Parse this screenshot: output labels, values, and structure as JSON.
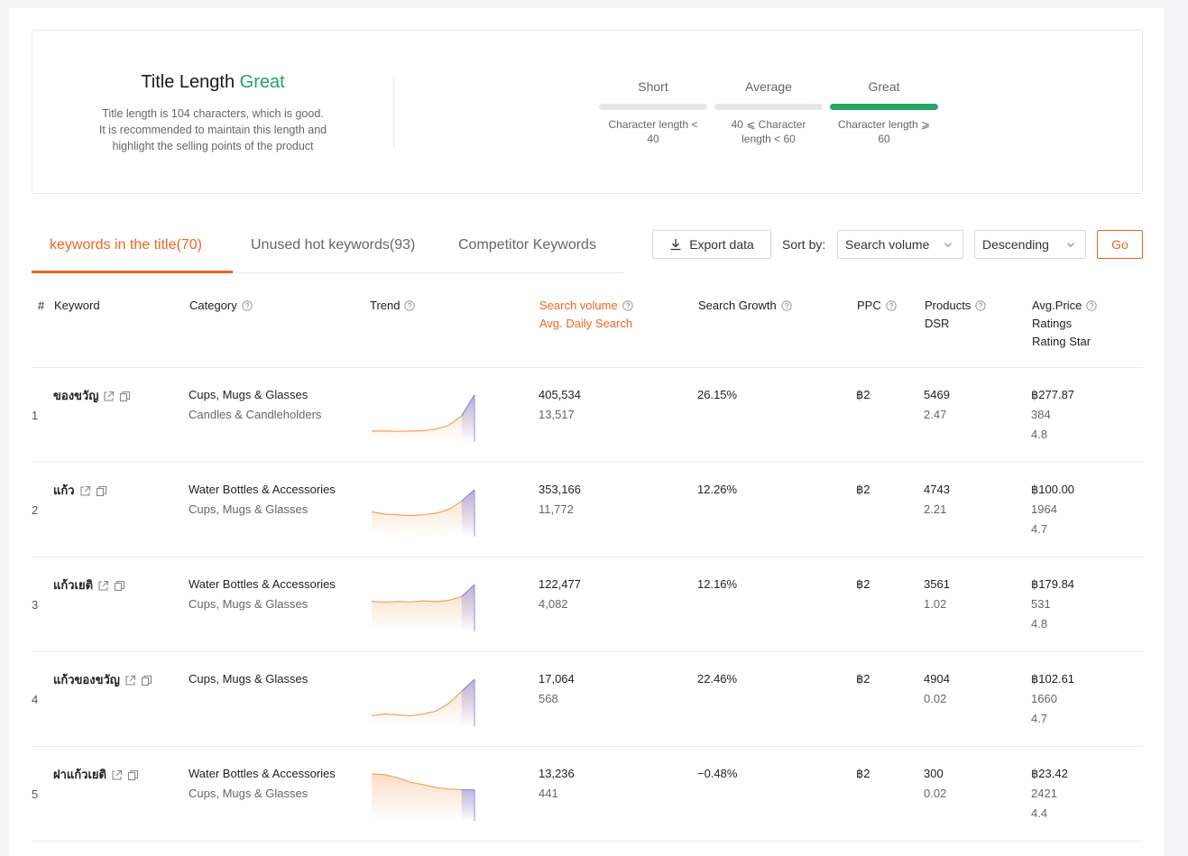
{
  "title_length": {
    "heading": "Title Length",
    "rating": "Great",
    "description": [
      "Title length is 104 characters, which is good.",
      "It is recommended to maintain this length and",
      "highlight the selling points of the product"
    ],
    "scales": [
      {
        "label": "Short",
        "sub": [
          "Character length <",
          "40"
        ],
        "active": false
      },
      {
        "label": "Average",
        "sub": [
          "40 ⩽ Character",
          "length < 60"
        ],
        "active": false
      },
      {
        "label": "Great",
        "sub": [
          "Character length ⩾",
          "60"
        ],
        "active": true
      }
    ]
  },
  "tabs": [
    {
      "label": "keywords in the title(70)",
      "active": true
    },
    {
      "label": "Unused hot keywords(93)",
      "active": false
    },
    {
      "label": "Competitor Keywords",
      "active": false
    }
  ],
  "toolbar": {
    "export_label": "Export data",
    "sort_label": "Sort by:",
    "sort_value": "Search volume",
    "order_value": "Descending",
    "go_label": "Go"
  },
  "columns": {
    "index": "#",
    "keyword": "Keyword",
    "category": "Category",
    "trend": "Trend",
    "search_volume": [
      "Search volume",
      "Avg. Daily Search"
    ],
    "search_growth": "Search Growth",
    "ppc": "PPC",
    "products": [
      "Products",
      "DSR"
    ],
    "price": [
      "Avg.Price",
      "Ratings",
      "Rating Star"
    ]
  },
  "rows": [
    {
      "index": "1",
      "keyword": "ของขวัญ",
      "categories": [
        "Cups, Mugs & Glasses",
        "Candles & Candleholders"
      ],
      "trend": [
        0.05,
        0.05,
        0.04,
        0.05,
        0.06,
        0.1,
        0.2,
        0.45,
        1.0
      ],
      "search_volume": "405,534",
      "daily": "13,517",
      "growth": "26.15%",
      "ppc": "฿2",
      "products": "5469",
      "dsr": "2.47",
      "price": "฿277.87",
      "ratings": "384",
      "star": "4.8"
    },
    {
      "index": "2",
      "keyword": "แก้ว",
      "categories": [
        "Water Bottles & Accessories",
        "Cups, Mugs & Glasses"
      ],
      "trend": [
        0.42,
        0.36,
        0.34,
        0.32,
        0.34,
        0.38,
        0.48,
        0.7,
        1.0
      ],
      "search_volume": "353,166",
      "daily": "11,772",
      "growth": "12.26%",
      "ppc": "฿2",
      "products": "4743",
      "dsr": "2.21",
      "price": "฿100.00",
      "ratings": "1964",
      "star": "4.7"
    },
    {
      "index": "3",
      "keyword": "แก้วเยติ",
      "categories": [
        "Water Bottles & Accessories",
        "Cups, Mugs & Glasses"
      ],
      "trend": [
        0.56,
        0.53,
        0.55,
        0.54,
        0.57,
        0.55,
        0.58,
        0.68,
        1.0
      ],
      "search_volume": "122,477",
      "daily": "4,082",
      "growth": "12.16%",
      "ppc": "฿2",
      "products": "3561",
      "dsr": "1.02",
      "price": "฿179.84",
      "ratings": "531",
      "star": "4.8"
    },
    {
      "index": "4",
      "keyword": "แก้วของขวัญ",
      "categories": [
        "Cups, Mugs & Glasses"
      ],
      "trend": [
        0.04,
        0.08,
        0.06,
        0.03,
        0.08,
        0.16,
        0.36,
        0.68,
        1.0
      ],
      "search_volume": "17,064",
      "daily": "568",
      "growth": "22.46%",
      "ppc": "฿2",
      "products": "4904",
      "dsr": "0.02",
      "price": "฿102.61",
      "ratings": "1660",
      "star": "4.7"
    },
    {
      "index": "5",
      "keyword": "ฝาแก้วเยติ",
      "categories": [
        "Water Bottles & Accessories",
        "Cups, Mugs & Glasses"
      ],
      "trend": [
        1.0,
        0.98,
        0.9,
        0.78,
        0.72,
        0.64,
        0.6,
        0.58,
        0.58
      ],
      "search_volume": "13,236",
      "daily": "441",
      "growth": "−0.48%",
      "ppc": "฿2",
      "products": "300",
      "dsr": "0.02",
      "price": "฿23.42",
      "ratings": "2421",
      "star": "4.4"
    }
  ],
  "colors": {
    "accent": "#f06522",
    "great": "#22a463",
    "trend_line": "#f5a05a",
    "trend_highlight": "#8b8fe8"
  }
}
